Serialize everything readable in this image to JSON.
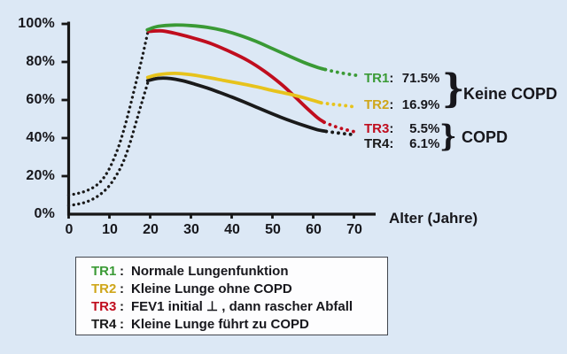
{
  "colors": {
    "background": "#dce8f5",
    "axis": "#161616",
    "tr1_green": "#3a9a35",
    "tr2_yellow": "#e7c31c",
    "tr3_red": "#c00d1e",
    "tr4_black": "#1a1a1a",
    "legend_background": "#fdfdfe",
    "legend_border": "#42464e"
  },
  "chart_data": {
    "type": "line",
    "title": "",
    "xlabel": "Alter (Jahre)",
    "ylabel": "",
    "xlim": [
      0,
      75
    ],
    "ylim": [
      0,
      100
    ],
    "grid": false,
    "x_ticks": [
      0,
      10,
      20,
      30,
      40,
      50,
      60,
      70
    ],
    "x_tick_labels": [
      "0",
      "10",
      "20",
      "30",
      "40",
      "50",
      "60",
      "70"
    ],
    "y_ticks": [
      0,
      20,
      40,
      60,
      80,
      100
    ],
    "y_tick_labels_top_down": [
      "100%",
      "80%",
      "60%",
      "40%",
      "20%",
      "0%"
    ],
    "lead_curves": [
      {
        "name": "growth-high",
        "style": "dotted",
        "color": "#1a1a1a",
        "points": [
          [
            0,
            10
          ],
          [
            2,
            10.8
          ],
          [
            4,
            12
          ],
          [
            6,
            14
          ],
          [
            8,
            17.5
          ],
          [
            10,
            24
          ],
          [
            12,
            34
          ],
          [
            13.5,
            44
          ],
          [
            15,
            56
          ],
          [
            16.5,
            69
          ],
          [
            18,
            82
          ],
          [
            19.4,
            95.5
          ]
        ]
      },
      {
        "name": "growth-low",
        "style": "dotted",
        "color": "#1a1a1a",
        "points": [
          [
            0,
            4.5
          ],
          [
            2,
            5.2
          ],
          [
            4,
            6.2
          ],
          [
            6,
            8
          ],
          [
            8,
            10.8
          ],
          [
            10,
            15
          ],
          [
            12,
            21.5
          ],
          [
            13.5,
            28
          ],
          [
            15,
            37
          ],
          [
            16.5,
            48
          ],
          [
            18,
            59
          ],
          [
            19.4,
            69
          ]
        ]
      }
    ],
    "series": [
      {
        "name": "TR1",
        "color": "#3a9a35",
        "solid": [
          [
            19.3,
            96.9
          ],
          [
            22,
            98.7
          ],
          [
            26,
            99.4
          ],
          [
            30,
            99.1
          ],
          [
            34,
            98.2
          ],
          [
            38,
            96.5
          ],
          [
            42,
            94
          ],
          [
            46,
            90.8
          ],
          [
            50,
            87
          ],
          [
            54,
            83.2
          ],
          [
            58,
            79.5
          ],
          [
            61,
            77.2
          ],
          [
            63,
            76
          ]
        ],
        "dotted_tail": [
          [
            63,
            76
          ],
          [
            65.5,
            74.8
          ],
          [
            68,
            73.8
          ],
          [
            70.8,
            72.9
          ]
        ]
      },
      {
        "name": "TR2",
        "color": "#e7c31c",
        "solid": [
          [
            19.4,
            71.9
          ],
          [
            22,
            73.3
          ],
          [
            26,
            74
          ],
          [
            30,
            73.3
          ],
          [
            34,
            71.9
          ],
          [
            38,
            70.3
          ],
          [
            42,
            68.7
          ],
          [
            46,
            67
          ],
          [
            50,
            65
          ],
          [
            54,
            63.2
          ],
          [
            58,
            61
          ],
          [
            62,
            58.5
          ]
        ],
        "dotted_tail": [
          [
            62,
            58.5
          ],
          [
            65,
            57.7
          ],
          [
            68,
            57
          ],
          [
            70.8,
            56.2
          ]
        ]
      },
      {
        "name": "TR3",
        "color": "#c00d1e",
        "solid": [
          [
            19.6,
            96
          ],
          [
            23,
            96.3
          ],
          [
            27,
            94.6
          ],
          [
            31,
            92.3
          ],
          [
            35,
            89.6
          ],
          [
            40,
            85
          ],
          [
            44,
            80.7
          ],
          [
            48,
            75.2
          ],
          [
            52,
            68.6
          ],
          [
            55,
            62.8
          ],
          [
            58,
            56.6
          ],
          [
            61,
            50.8
          ],
          [
            62.7,
            48.3
          ]
        ],
        "dotted_tail": [
          [
            62.7,
            48.3
          ],
          [
            65.2,
            46.2
          ],
          [
            68,
            44.4
          ],
          [
            70.8,
            43
          ]
        ]
      },
      {
        "name": "TR4",
        "color": "#1a1a1a",
        "solid": [
          [
            19.4,
            70.2
          ],
          [
            22,
            71.4
          ],
          [
            25,
            71.3
          ],
          [
            28,
            70.1
          ],
          [
            31,
            68.3
          ],
          [
            34,
            66.3
          ],
          [
            37,
            64
          ],
          [
            40,
            61.6
          ],
          [
            43,
            59
          ],
          [
            46,
            56.3
          ],
          [
            49,
            53.6
          ],
          [
            52,
            51
          ],
          [
            55,
            48.6
          ],
          [
            58,
            46.4
          ],
          [
            61,
            44.4
          ],
          [
            63.2,
            43.5
          ]
        ],
        "dotted_tail": [
          [
            63.2,
            43.5
          ],
          [
            65.6,
            42.8
          ],
          [
            68,
            42.2
          ],
          [
            70.3,
            41.7
          ]
        ]
      }
    ]
  },
  "annotations": {
    "items": [
      {
        "label": "TR1",
        "colon": ":",
        "value": "71.5%"
      },
      {
        "label": "TR2",
        "colon": ":",
        "value": "16.9%"
      },
      {
        "label": "TR3",
        "colon": ":",
        "value": "5.5%"
      },
      {
        "label": "TR4",
        "colon": ":",
        "value": "6.1%"
      }
    ],
    "groups": [
      {
        "brace": "}",
        "label": "Keine COPD"
      },
      {
        "brace": "}",
        "label": "COPD"
      }
    ]
  },
  "legend": {
    "items": [
      {
        "label": "TR1",
        "colon": ":",
        "text": "Normale Lungenfunktion"
      },
      {
        "label": "TR2",
        "colon": ":",
        "text": "Kleine Lunge ohne COPD"
      },
      {
        "label": "TR3",
        "colon": ":",
        "text": "FEV1 initial ⊥ , dann rascher Abfall"
      },
      {
        "label": "TR4",
        "colon": ":",
        "text": "Kleine Lunge führt zu COPD"
      }
    ]
  }
}
